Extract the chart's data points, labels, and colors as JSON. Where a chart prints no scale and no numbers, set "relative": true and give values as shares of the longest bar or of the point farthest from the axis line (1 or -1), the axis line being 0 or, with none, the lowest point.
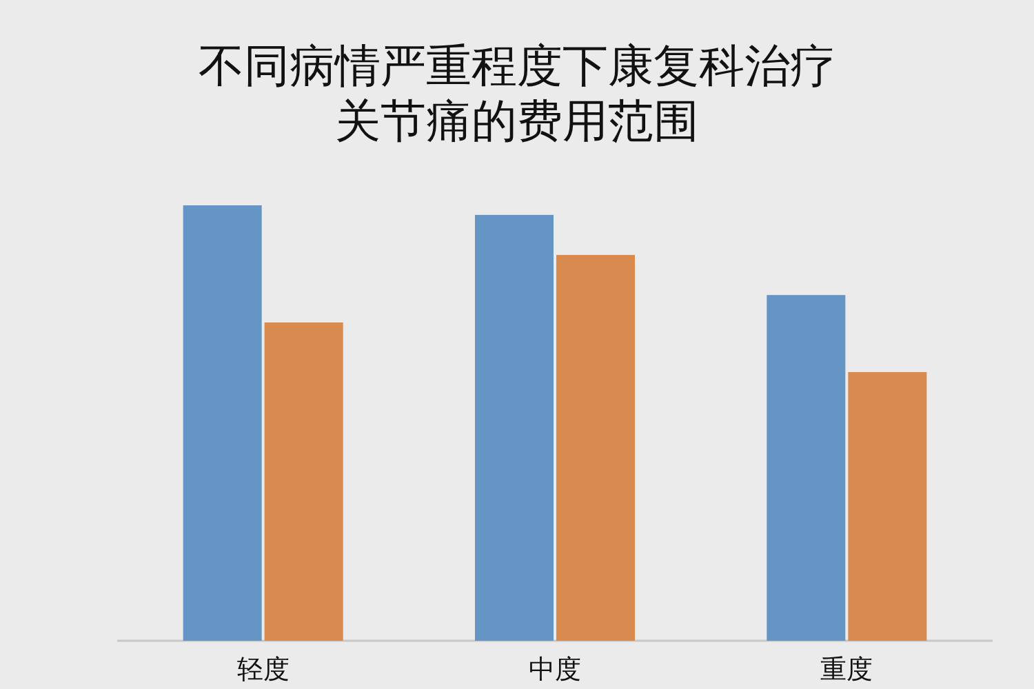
{
  "chart_data": {
    "type": "bar",
    "title": "不同病情严重程度下康复科治疗关节痛的费用范围",
    "categories": [
      "轻度",
      "中度",
      "重度"
    ],
    "relative": true,
    "series": [
      {
        "color": "#6495c4",
        "values": [
          1,
          0.978,
          0.794
        ]
      },
      {
        "color": "#d98a4e",
        "values": [
          0.731,
          0.886,
          0.617
        ]
      }
    ]
  }
}
